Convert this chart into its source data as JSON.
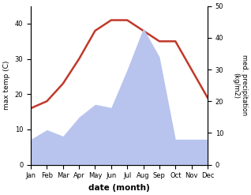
{
  "months": [
    "Jan",
    "Feb",
    "Mar",
    "Apr",
    "May",
    "Jun",
    "Jul",
    "Aug",
    "Sep",
    "Oct",
    "Nov",
    "Dec"
  ],
  "temp": [
    16,
    18,
    23,
    30,
    38,
    41,
    41,
    38,
    35,
    35,
    27,
    19
  ],
  "precip": [
    8,
    11,
    9,
    15,
    19,
    18,
    30,
    43,
    34,
    8,
    8,
    8
  ],
  "temp_color": "#c0392b",
  "precip_color": "#b8c4ee",
  "title": "",
  "xlabel": "date (month)",
  "ylabel_left": "max temp (C)",
  "ylabel_right": "med. precipitation\n(kg/m2)",
  "ylim_left": [
    0,
    45
  ],
  "ylim_right": [
    0,
    50
  ],
  "yticks_left": [
    0,
    10,
    20,
    30,
    40
  ],
  "yticks_right": [
    0,
    10,
    20,
    30,
    40,
    50
  ],
  "line_width": 1.8,
  "fig_width": 3.18,
  "fig_height": 2.47,
  "dpi": 100
}
